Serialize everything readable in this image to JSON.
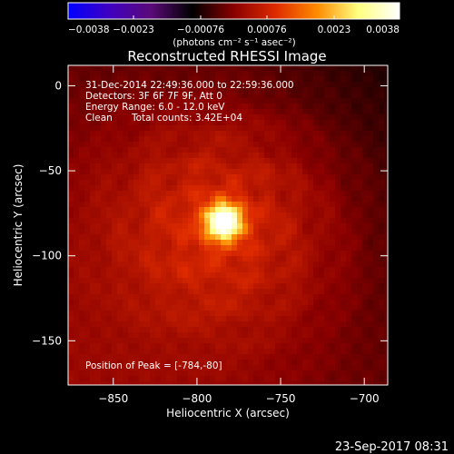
{
  "chart_data": {
    "type": "heatmap",
    "title": "Reconstructed RHESSI Image",
    "xlabel": "Heliocentric X (arcsec)",
    "ylabel": "Heliocentric Y (arcsec)",
    "xlim": [
      -877,
      -686
    ],
    "ylim": [
      -176,
      12
    ],
    "x_ticks": [
      -850,
      -800,
      -750,
      -700
    ],
    "y_ticks": [
      0,
      -50,
      -100,
      -150
    ],
    "x_tick_labels": [
      "−850",
      "−800",
      "−750",
      "−700"
    ],
    "y_tick_labels": [
      "0",
      "−50",
      "−100",
      "−150"
    ],
    "colorbar": {
      "min": -0.0038,
      "max": 0.0038,
      "ticks": [
        -0.0038,
        -0.0023,
        -0.00076,
        0.00076,
        0.0023,
        0.0038
      ],
      "tick_labels": [
        "−0.0038",
        "−0.0023",
        "−0.00076",
        "0.00076",
        "0.0023",
        "0.0038"
      ],
      "unit_label": "(photons cm⁻² s⁻¹ asec⁻²)",
      "colormap": [
        "#0000ff",
        "#4000c0",
        "#5a0a78",
        "#000000",
        "#8a0000",
        "#dd2a00",
        "#ff8a00",
        "#ffff80",
        "#ffffff"
      ]
    },
    "peak": {
      "x": -784,
      "y": -80
    },
    "peak_value": 0.0038
  },
  "annotations": {
    "line1": "31-Dec-2014 22:49:36.000 to 22:59:36.000",
    "line2": "Detectors: 3F 6F 7F 9F, Att 0",
    "line3": "Energy Range: 6.0 - 12.0 keV",
    "line4_method": "Clean",
    "line4_counts": "Total counts: 3.42E+04",
    "peak_label": "Position of Peak = [-784,-80]"
  },
  "footer": {
    "timestamp": "23-Sep-2017 08:31"
  }
}
